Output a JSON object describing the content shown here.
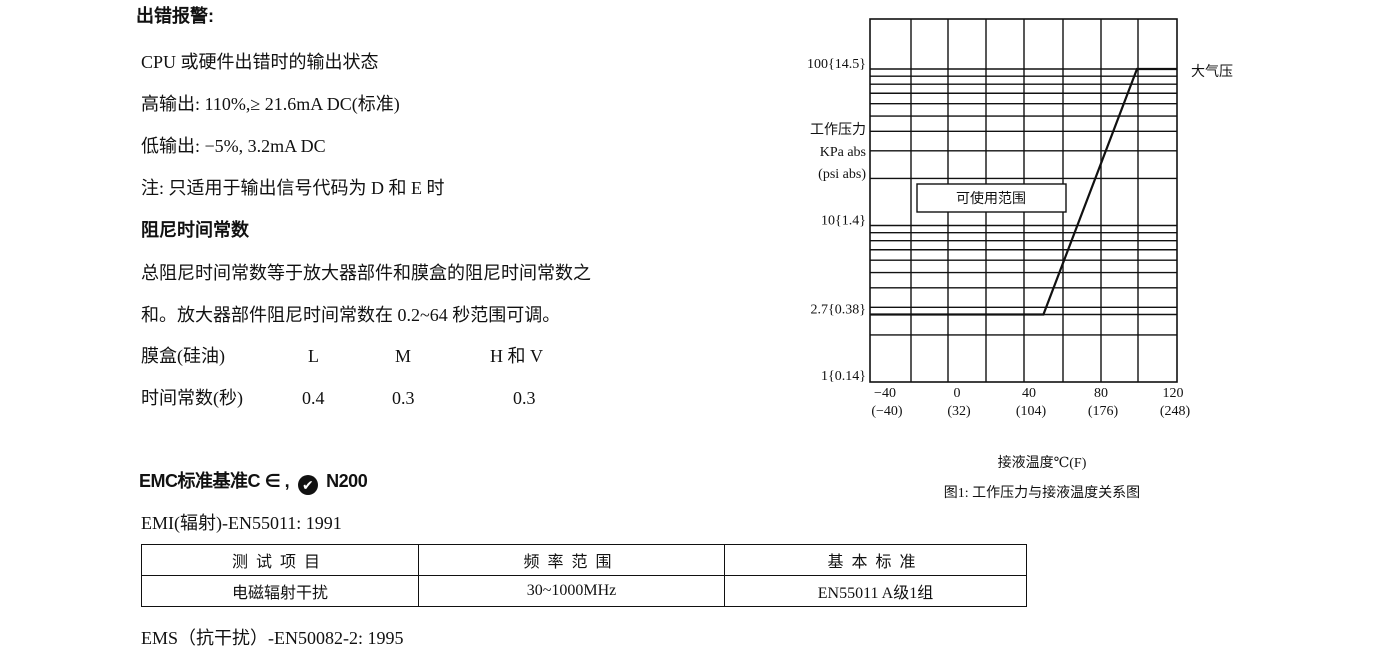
{
  "error_alarm": {
    "heading": "出错报警:",
    "lines": [
      "CPU 或硬件出错时的输出状态",
      "高输出: 110%,≥ 21.6mA  DC(标准)",
      "低输出: −5%,  3.2mA  DC",
      "注:  只适用于输出信号代码为 D 和 E 时"
    ]
  },
  "damping": {
    "heading": "阻尼时间常数",
    "lines": [
      "总阻尼时间常数等于放大器部件和膜盒的阻尼时间常数之",
      "和。放大器部件阻尼时间常数在 0.2~64 秒范围可调。"
    ],
    "table": {
      "row_labels": [
        "膜盒(硅油)",
        "时间常数(秒)"
      ],
      "types": [
        "L",
        "M",
        "H 和 V"
      ],
      "values": [
        "0.4",
        "0.3",
        "0.3"
      ]
    }
  },
  "emc": {
    "heading": "EMC标准基准C ∈ ,",
    "mark_label": "N200",
    "mark_icon": "c-tick-icon",
    "emi": "EMI(辐射)-EN55011:  1991",
    "table": {
      "headers": [
        "测试项目",
        "频率范围",
        "基本标准"
      ],
      "rows": [
        [
          "电磁辐射干扰",
          "30~1000MHz",
          "EN55011  A级1组"
        ]
      ]
    },
    "ems": "EMS（抗干扰）-EN50082-2:  1995"
  },
  "chart_data": {
    "type": "line",
    "title": "图1:  工作压力与接液温度关系图",
    "xlabel": "接液温度℃(F)",
    "ylabel": [
      "工作压力",
      "KPa abs",
      "(psi abs)"
    ],
    "yscale": "log",
    "ylim": [
      1,
      215
    ],
    "xlim": [
      -48,
      122
    ],
    "x_ticks": [
      {
        "value": -40,
        "label": "−40",
        "sub": "(−40)"
      },
      {
        "value": 0,
        "label": "0",
        "sub": "(32)"
      },
      {
        "value": 40,
        "label": "40",
        "sub": "(104)"
      },
      {
        "value": 80,
        "label": "80",
        "sub": "(176)"
      },
      {
        "value": 120,
        "label": "120",
        "sub": "(248)"
      }
    ],
    "y_ticks": [
      {
        "value": 100,
        "label": "100{14.5}"
      },
      {
        "value": 10,
        "label": "10{1.4}"
      },
      {
        "value": 2.7,
        "label": "2.7{0.38}"
      },
      {
        "value": 1,
        "label": "1{0.14}"
      }
    ],
    "grid": true,
    "series": [
      {
        "points": [
          [
            -48,
            2.7
          ],
          [
            48,
            2.7
          ],
          [
            100,
            100
          ],
          [
            122,
            100
          ]
        ]
      }
    ],
    "annotations": {
      "region_label": "可使用范围",
      "line_end_label": "大气压"
    }
  }
}
